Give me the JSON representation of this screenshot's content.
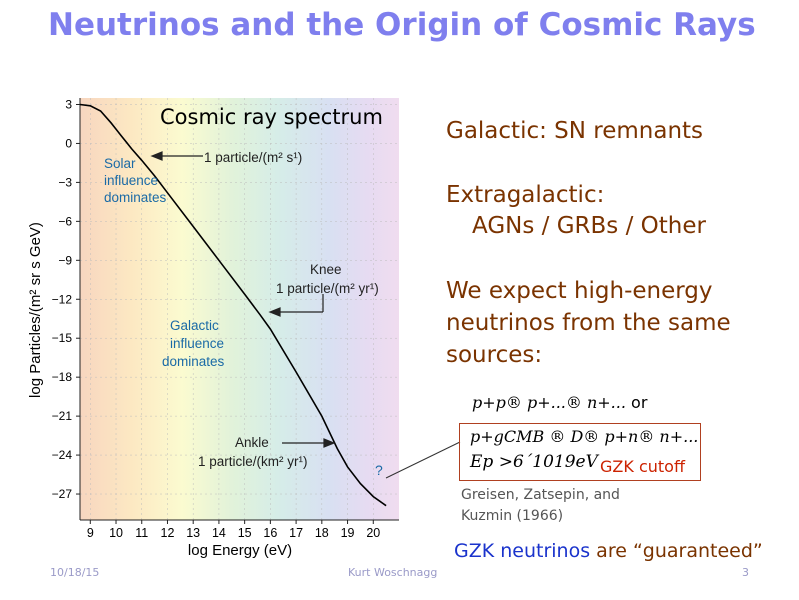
{
  "slide": {
    "title": "Neutrinos and the Origin of Cosmic Rays",
    "title_color": "#7f7fee",
    "plot_title": "Cosmic ray spectrum",
    "bullets": {
      "galactic": "Galactic: SN remnants",
      "extragalactic": "Extragalactic:",
      "extragalactic_sources": "AGNs / GRBs / Other",
      "expect_1": "We expect high-energy",
      "expect_2": "neutrinos from the same",
      "expect_3": "sources:"
    },
    "equation_1": "p+p® p+...® n+...",
    "equation_1_or": "or",
    "equation_2": "p+gCMB ® D® p+n® n+...",
    "equation_3": "Ep >6´1019eV",
    "gzk_cutoff": "GZK cutoff",
    "reference_1": "Greisen, Zatsepin, and",
    "reference_2": "Kuzmin (1966)",
    "conclusion_blue": "GZK neutrinos",
    "conclusion_rest": "are “guaranteed”",
    "footer": {
      "date": "10/18/15",
      "author": "Kurt Woschnagg",
      "page": "3"
    }
  },
  "chart_data": {
    "type": "line",
    "xlabel": "log Energy (eV)",
    "ylabel": "log Particles/(m² sr s GeV)",
    "xlim": [
      8.6,
      21.0
    ],
    "ylim": [
      -29.0,
      3.5
    ],
    "xticks": [
      "9",
      "10",
      "11",
      "12",
      "13",
      "14",
      "15",
      "16",
      "17",
      "18",
      "19",
      "20"
    ],
    "yticks": [
      "3",
      "0",
      "−3",
      "−6",
      "−9",
      "−12",
      "−15",
      "−18",
      "−21",
      "−24",
      "−27"
    ],
    "series": [
      {
        "x": [
          8.6,
          9.0,
          9.4,
          9.8,
          10.2,
          10.6,
          11.0,
          11.5,
          12.0,
          13.0,
          14.0,
          15.0,
          15.6,
          16.0,
          17.0,
          18.0,
          18.6,
          19.0,
          19.5,
          20.0,
          20.5
        ],
        "y": [
          3.0,
          2.9,
          2.5,
          1.6,
          0.6,
          -0.4,
          -1.3,
          -2.5,
          -3.8,
          -6.4,
          -9.0,
          -11.6,
          -13.2,
          -14.3,
          -17.6,
          -21.0,
          -23.5,
          -24.9,
          -26.2,
          -27.2,
          -27.9
        ]
      }
    ],
    "annotations": [
      {
        "text": "1 particle/(m² s¹)",
        "x": 11.3,
        "y": 0.0
      },
      {
        "text": "Solar influence dominates",
        "x": 9.8,
        "y": -2.5
      },
      {
        "text": "Knee",
        "x": 17.2,
        "y": -9.5
      },
      {
        "text": "1 particle/(m² yr¹)",
        "x": 15.6,
        "y": -12.0
      },
      {
        "text": "Galactic influence dominates",
        "x": 12.6,
        "y": -15.5
      },
      {
        "text": "Ankle",
        "x": 18.5,
        "y": -23.0
      },
      {
        "text": "1 particle/(km² yr¹)",
        "x": 18.6,
        "y": -24.5
      },
      {
        "text": "?",
        "x": 20.3,
        "y": -26.5
      }
    ],
    "annotation_color": "#1a6aa6"
  }
}
